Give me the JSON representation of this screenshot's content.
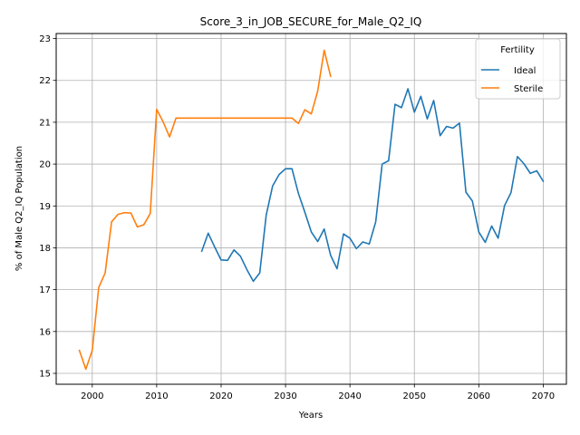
{
  "chart_data": {
    "type": "line",
    "title": "Score_3_in_JOB_SECURE_for_Male_Q2_IQ",
    "xlabel": "Years",
    "ylabel": "% of Male Q2_IQ Population",
    "xlim": [
      1994.4,
      2073.6
    ],
    "ylim": [
      14.74,
      23.12
    ],
    "xticks": [
      2000,
      2010,
      2020,
      2030,
      2040,
      2050,
      2060,
      2070
    ],
    "yticks": [
      15,
      16,
      17,
      18,
      19,
      20,
      21,
      22,
      23
    ],
    "grid": true,
    "legend": {
      "title": "Fertility",
      "placement": "top-right"
    },
    "series": [
      {
        "name": "Ideal",
        "color": "#1f77b4",
        "x": [
          2017,
          2018,
          2019,
          2020,
          2021,
          2022,
          2023,
          2024,
          2025,
          2026,
          2027,
          2028,
          2029,
          2030,
          2031,
          2032,
          2033,
          2034,
          2035,
          2036,
          2037,
          2038,
          2039,
          2040,
          2041,
          2042,
          2043,
          2044,
          2045,
          2046,
          2047,
          2048,
          2049,
          2050,
          2051,
          2052,
          2053,
          2054,
          2055,
          2056,
          2057,
          2058,
          2059,
          2060,
          2061,
          2062,
          2063,
          2064,
          2065,
          2066,
          2067,
          2068,
          2069,
          2070
        ],
        "y": [
          17.92,
          18.35,
          18.02,
          17.71,
          17.7,
          17.95,
          17.8,
          17.48,
          17.2,
          17.4,
          18.78,
          19.48,
          19.75,
          19.89,
          19.89,
          19.3,
          18.85,
          18.38,
          18.15,
          18.45,
          17.82,
          17.5,
          18.33,
          18.23,
          17.98,
          18.14,
          18.09,
          18.62,
          20.0,
          20.08,
          21.43,
          21.35,
          21.8,
          21.24,
          21.62,
          21.08,
          21.52,
          20.68,
          20.9,
          20.86,
          20.98,
          19.33,
          19.12,
          18.38,
          18.13,
          18.52,
          18.23,
          19.01,
          19.32,
          20.18,
          20.01,
          19.78,
          19.84,
          19.59
        ]
      },
      {
        "name": "Sterile",
        "color": "#ff7f0e",
        "x": [
          1998,
          1999,
          2000,
          2001,
          2002,
          2003,
          2004,
          2005,
          2006,
          2007,
          2008,
          2009,
          2010,
          2011,
          2012,
          2013,
          2014,
          2015,
          2016,
          2017,
          2018,
          2019,
          2020,
          2021,
          2022,
          2023,
          2024,
          2025,
          2026,
          2027,
          2028,
          2029,
          2030,
          2031,
          2032,
          2033,
          2034,
          2035,
          2036,
          2037
        ],
        "y": [
          15.55,
          15.1,
          15.55,
          17.05,
          17.4,
          18.62,
          18.8,
          18.84,
          18.83,
          18.5,
          18.55,
          18.82,
          21.31,
          21.01,
          20.65,
          21.1,
          21.1,
          21.1,
          21.1,
          21.1,
          21.1,
          21.1,
          21.1,
          21.1,
          21.1,
          21.1,
          21.1,
          21.1,
          21.1,
          21.1,
          21.1,
          21.1,
          21.1,
          21.1,
          20.97,
          21.3,
          21.2,
          21.75,
          22.72,
          22.1
        ]
      }
    ]
  }
}
